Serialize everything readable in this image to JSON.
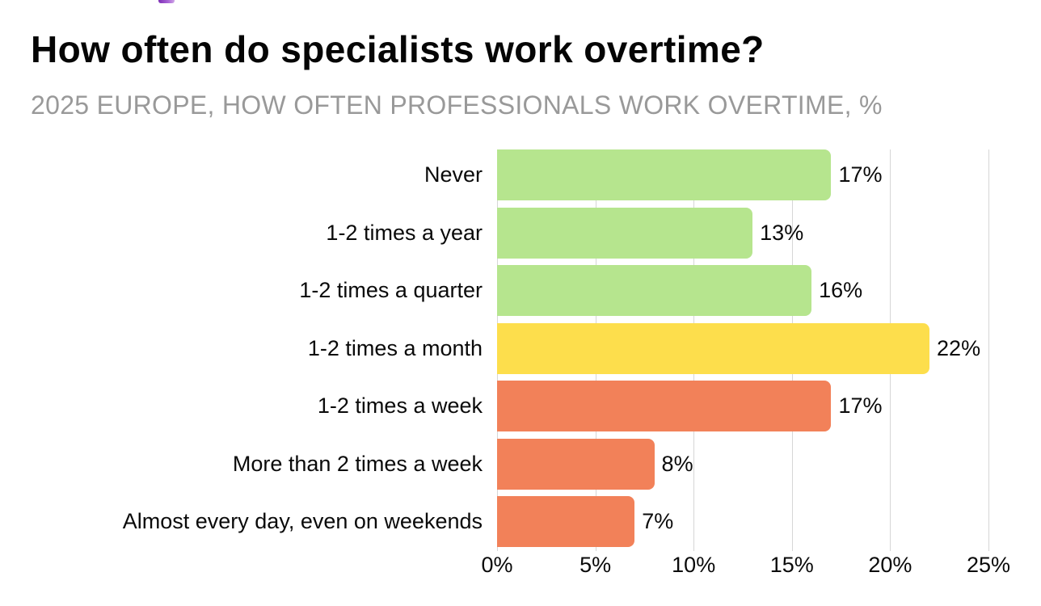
{
  "page": {
    "title": "How often do specialists work overtime?",
    "subtitle": "2025 EUROPE, HOW OFTEN PROFESSIONALS WORK OVERTIME, %"
  },
  "logo": {
    "name": "cropped-purple-logo-fragment",
    "color": "#8d3bbf"
  },
  "colors": {
    "title_text": "#050505",
    "subtitle_text": "#999999",
    "gridline": "#d6d6d6",
    "label_text": "#0a0a0a",
    "green_bar": "#b6e58e",
    "yellow_bar": "#fdde4c",
    "orange_bar": "#f28159"
  },
  "chart_data": {
    "type": "bar",
    "orientation": "horizontal",
    "title": "How often do specialists work overtime?",
    "subtitle": "2025 EUROPE, HOW OFTEN PROFESSIONALS WORK OVERTIME, %",
    "xlabel": "",
    "ylabel": "",
    "xlim": [
      0,
      25
    ],
    "grid": "vertical",
    "legend": "none",
    "categories": [
      "Never",
      "1-2 times a year",
      "1-2 times a quarter",
      "1-2 times a month",
      "1-2 times a week",
      "More than 2 times a week",
      "Almost every day, even on weekends"
    ],
    "values": [
      17,
      13,
      16,
      22,
      17,
      8,
      7
    ],
    "value_labels": [
      "17%",
      "13%",
      "16%",
      "22%",
      "17%",
      "8%",
      "7%"
    ],
    "bar_colors": [
      "#b6e58e",
      "#b6e58e",
      "#b6e58e",
      "#fdde4c",
      "#f28159",
      "#f28159",
      "#f28159"
    ],
    "x_tick_values": [
      0,
      5,
      10,
      15,
      20,
      25
    ],
    "x_tick_labels": [
      "0%",
      "5%",
      "10%",
      "15%",
      "20%",
      "25%"
    ]
  }
}
